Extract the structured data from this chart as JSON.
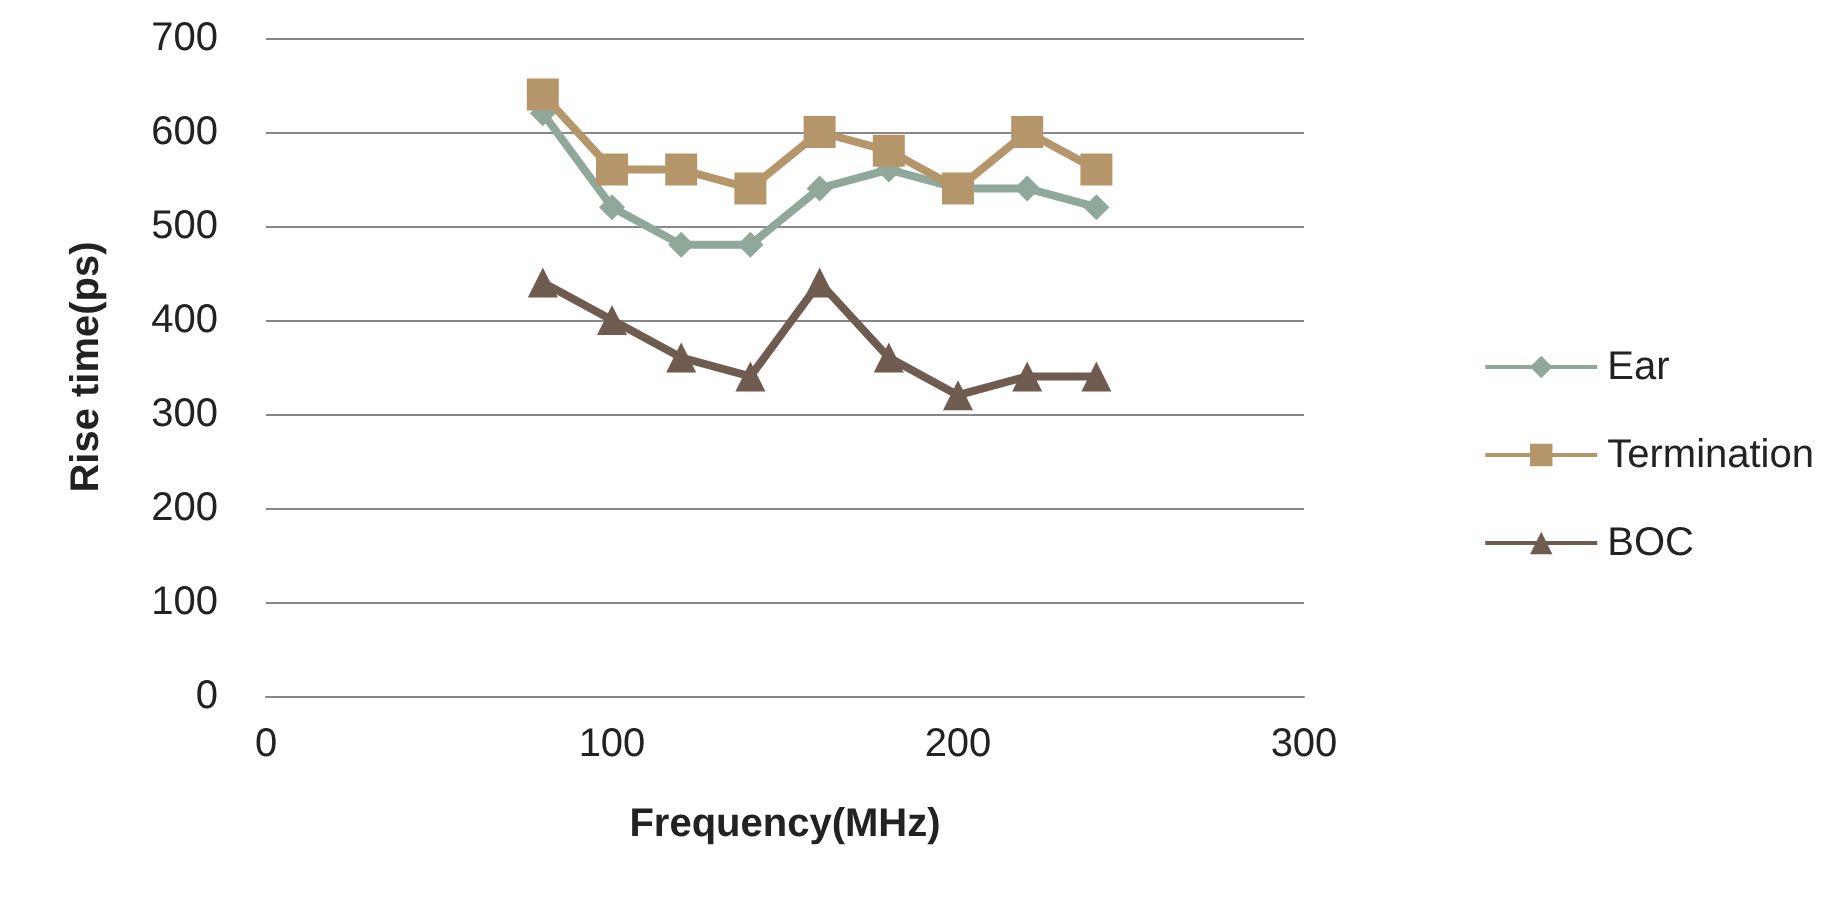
{
  "chart_data": {
    "type": "line",
    "xlabel": "Frequency(MHz)",
    "ylabel": "Rise time(ps)",
    "x": [
      80,
      100,
      120,
      140,
      160,
      180,
      200,
      220,
      240
    ],
    "series": [
      {
        "name": "Ear",
        "color": "#8fa89a",
        "marker": "diamond",
        "values": [
          620,
          520,
          480,
          480,
          540,
          560,
          540,
          540,
          520
        ]
      },
      {
        "name": "Termination",
        "color": "#b4966a",
        "marker": "square",
        "values": [
          640,
          560,
          560,
          540,
          600,
          580,
          540,
          600,
          560
        ]
      },
      {
        "name": "BOC",
        "color": "#6f5b50",
        "marker": "triangle",
        "values": [
          440,
          400,
          360,
          340,
          440,
          360,
          320,
          340,
          340
        ]
      }
    ],
    "xlim": [
      0,
      300
    ],
    "xticks": [
      0,
      100,
      200,
      300
    ],
    "ylim": [
      0,
      700
    ],
    "yticks": [
      0,
      100,
      200,
      300,
      400,
      500,
      600,
      700
    ],
    "grid": "y",
    "legend": "right",
    "line_style": "solid"
  }
}
